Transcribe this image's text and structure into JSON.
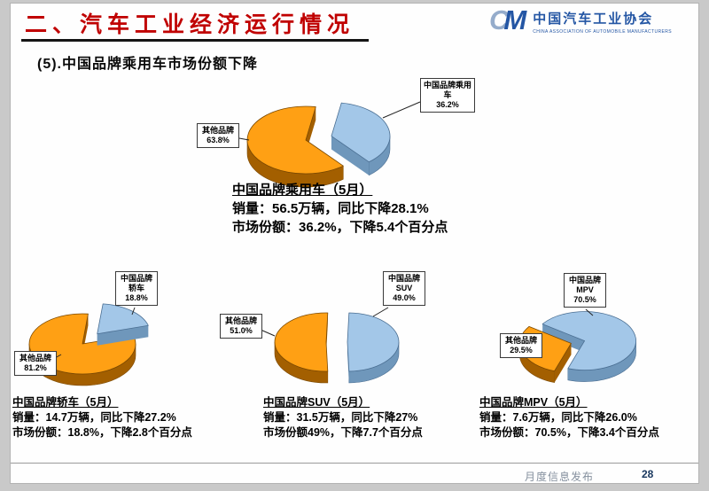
{
  "header": {
    "title": "二、汽车工业经济运行情况",
    "logo": {
      "mark_c": "C",
      "mark_m": "M",
      "name": "中国汽车工业协会",
      "name_en": "CHINA ASSOCIATION OF AUTOMOBILE MANUFACTURERS"
    }
  },
  "subtitle": "(5).中国品牌乘用车市场份额下降",
  "colors": {
    "title_red": "#c00000",
    "logo_blue": "#2456a4",
    "pie_blue_top": "#a3c7e8",
    "pie_blue_side": "#6f97bb",
    "pie_blue_outline": "#4a6e92",
    "pie_orange_top": "#ffa014",
    "pie_orange_side": "#a35f00",
    "pie_orange_outline": "#7a4800"
  },
  "chart_data": [
    {
      "type": "pie",
      "name": "passenger-cars",
      "slices": [
        {
          "label": "中国品牌乘用车",
          "value": 36.2,
          "pct_label": "36.2%",
          "color_key": "blue"
        },
        {
          "label": "其他品牌",
          "value": 63.8,
          "pct_label": "63.8%",
          "color_key": "orange"
        }
      ],
      "caption": {
        "title": "中国品牌乘用车（5月）",
        "sales": "销量：56.5万辆，同比下降28.1%",
        "share": "市场份额：36.2%，下降5.4个百分点"
      }
    },
    {
      "type": "pie",
      "name": "sedan",
      "slices": [
        {
          "label": "中国品牌轿车",
          "value": 18.8,
          "pct_label": "18.8%",
          "color_key": "blue"
        },
        {
          "label": "其他品牌",
          "value": 81.2,
          "pct_label": "81.2%",
          "color_key": "orange"
        }
      ],
      "caption": {
        "title": "中国品牌轿车（5月）",
        "sales": "销量：14.7万辆，同比下降27.2%",
        "share": "市场份额：18.8%，下降2.8个百分点"
      }
    },
    {
      "type": "pie",
      "name": "suv",
      "slices": [
        {
          "label": "中国品牌SUV",
          "value": 49.0,
          "pct_label": "49.0%",
          "color_key": "blue"
        },
        {
          "label": "其他品牌",
          "value": 51.0,
          "pct_label": "51.0%",
          "color_key": "orange"
        }
      ],
      "caption": {
        "title": "中国品牌SUV（5月）",
        "sales": "销量：31.5万辆，同比下降27%",
        "share": "市场份额49%，下降7.7个百分点"
      }
    },
    {
      "type": "pie",
      "name": "mpv",
      "slices": [
        {
          "label": "中国品牌MPV",
          "value": 70.5,
          "pct_label": "70.5%",
          "color_key": "blue"
        },
        {
          "label": "其他品牌",
          "value": 29.5,
          "pct_label": "29.5%",
          "color_key": "orange"
        }
      ],
      "caption": {
        "title": "中国品牌MPV（5月）",
        "sales": "销量：7.6万辆，同比下降26.0%",
        "share": "市场份额：70.5%，下降3.4个百分点"
      }
    }
  ],
  "footer": {
    "label": "月度信息发布",
    "page": "28"
  }
}
